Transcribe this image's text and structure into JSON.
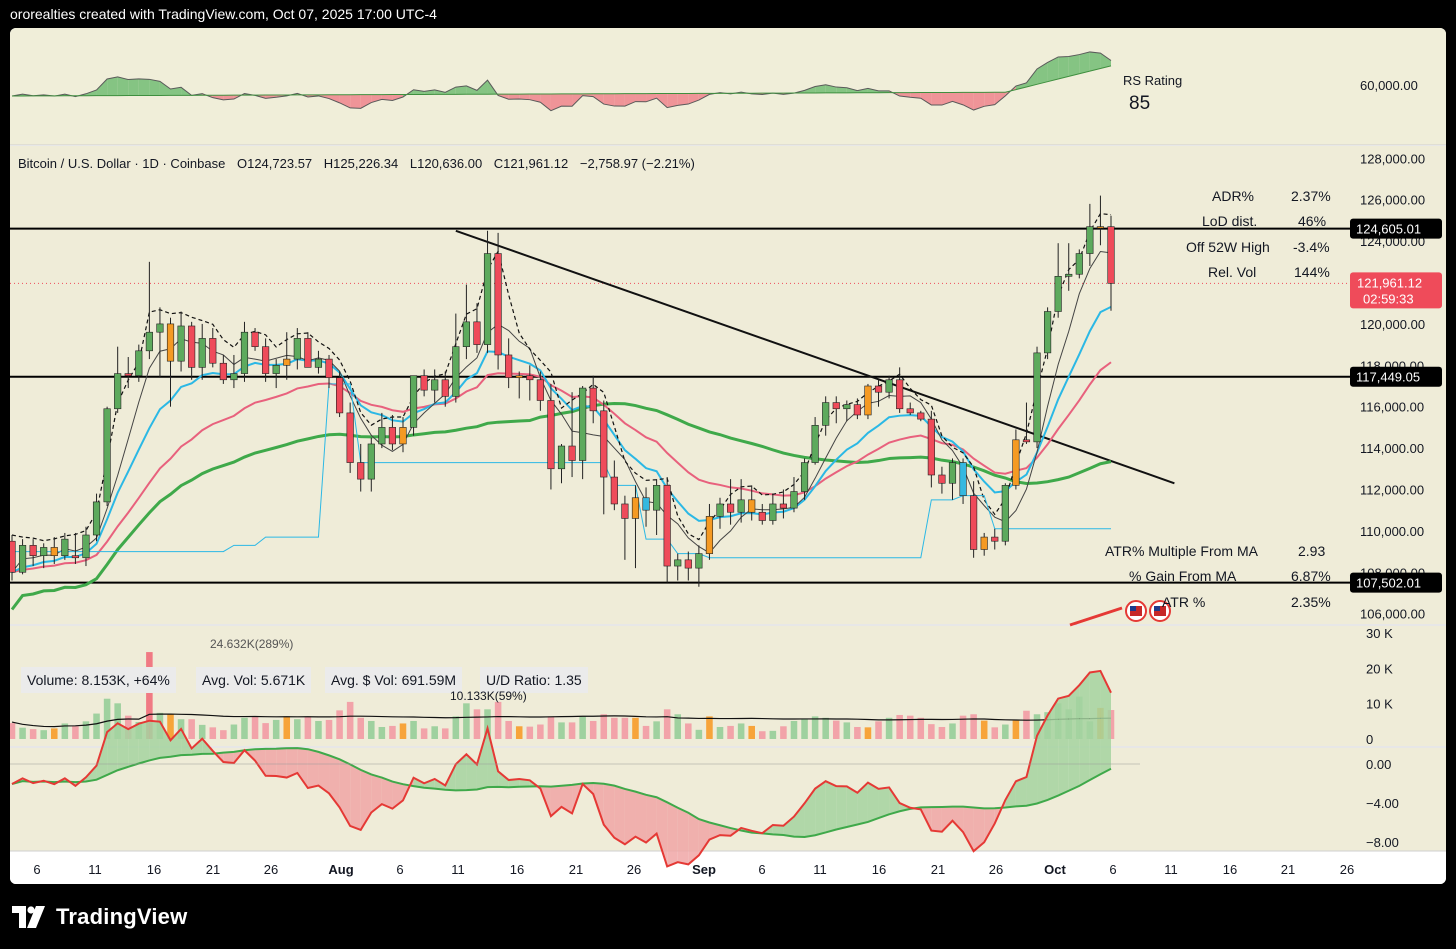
{
  "header": {
    "attribution": "ororealties created with TradingView.com, Oct 07, 2025 17:00 UTC-4"
  },
  "brand": {
    "name": "TradingView",
    "logo_icon": "tradingview-logo-icon"
  },
  "colors": {
    "bull": "#5daa5d",
    "bear": "#ef4b5a",
    "orange": "#f59a23",
    "cyan_candle": "#35b8e0",
    "ma_fast": "#2bb8e5",
    "ma_pink": "#e8617d",
    "ma_green": "#3fa94a",
    "pane_bg": "#f1eedc",
    "price_line": "#ef4b5a"
  },
  "rs_pane": {
    "label": "RS Rating",
    "value": "85",
    "axis_label": "60,000.00"
  },
  "main_pane": {
    "symbol_line": "Bitcoin / U.S. Dollar · 1D · Coinbase",
    "open": "O124,723.57",
    "high": "H125,226.34",
    "low": "L120,636.00",
    "close": "C121,961.12",
    "change": "−2,758.97 (−2.21%)",
    "stats_top": [
      {
        "label": "ADR%",
        "value": "2.37%"
      },
      {
        "label": "LoD dist.",
        "value": "46%"
      },
      {
        "label": "Off 52W High",
        "value": "-3.4%"
      },
      {
        "label": "Rel. Vol",
        "value": "144%"
      }
    ],
    "stats_bottom": [
      {
        "label": "ATR% Multiple From MA",
        "value": "2.93"
      },
      {
        "label": "% Gain From MA",
        "value": "6.87%"
      },
      {
        "label": "ATR %",
        "value": "2.35%"
      }
    ],
    "price_axis": [
      "128,000.00",
      "126,000.00",
      "124,000.00",
      "122,000.00",
      "120,000.00",
      "118,000.00",
      "116,000.00",
      "114,000.00",
      "112,000.00",
      "110,000.00",
      "108,000.00",
      "106,000.00"
    ],
    "level_labels": [
      "124,605.01",
      "117,449.05",
      "107,502.01"
    ],
    "last_price": "121,961.12",
    "countdown": "02:59:33",
    "event_icons": [
      "us-flag-icon",
      "us-flag-icon"
    ]
  },
  "volume_pane": {
    "volume": "Volume: 8.153K, +64%",
    "avg_vol": "Avg. Vol: 5.671K",
    "avg_dollar_vol": "Avg. $ Vol: 691.59M",
    "ud_ratio": "U/D Ratio: 1.35",
    "peak_label": "24.632K(289%)",
    "mid_label": "10.133K(59%)",
    "axis": [
      "30 K",
      "20 K",
      "10 K",
      "0"
    ]
  },
  "rs_line_pane": {
    "axis": [
      "0.00",
      "−4.00",
      "−8.00"
    ]
  },
  "x_axis": {
    "labels": [
      "6",
      "11",
      "16",
      "21",
      "26",
      "Aug",
      "6",
      "11",
      "16",
      "21",
      "26",
      "Sep",
      "6",
      "11",
      "16",
      "21",
      "26",
      "Oct",
      "6",
      "11",
      "16",
      "21",
      "26"
    ]
  },
  "chart_data": {
    "type": "candlestick",
    "title": "Bitcoin / U.S. Dollar · 1D · Coinbase",
    "x_start": "2025-07-02",
    "interval": "1D",
    "ohlc": [
      [
        109500,
        109800,
        107600,
        108000
      ],
      [
        108000,
        109600,
        107900,
        109300
      ],
      [
        109300,
        109600,
        108300,
        108800
      ],
      [
        108800,
        109400,
        108200,
        109200
      ],
      [
        109200,
        109700,
        108400,
        108800
      ],
      [
        108800,
        109900,
        108600,
        109600
      ],
      [
        108800,
        109900,
        108400,
        108700
      ],
      [
        108700,
        110200,
        108300,
        109800
      ],
      [
        109800,
        111800,
        109500,
        111400
      ],
      [
        111400,
        116000,
        111200,
        115900
      ],
      [
        115900,
        118900,
        115700,
        117600
      ],
      [
        117600,
        118400,
        116900,
        117500
      ],
      [
        117500,
        119000,
        117200,
        118700
      ],
      [
        118700,
        123000,
        118300,
        119600
      ],
      [
        119600,
        120800,
        117400,
        120000
      ],
      [
        120000,
        120300,
        116000,
        118200
      ],
      [
        118200,
        120600,
        117700,
        119900
      ],
      [
        119900,
        120100,
        117300,
        117900
      ],
      [
        117900,
        120000,
        117300,
        119300
      ],
      [
        119300,
        119800,
        117900,
        118100
      ],
      [
        118100,
        118500,
        117100,
        117300
      ],
      [
        117300,
        118500,
        116900,
        117600
      ],
      [
        117600,
        120100,
        117200,
        119600
      ],
      [
        119600,
        119800,
        118700,
        118900
      ],
      [
        118900,
        119300,
        117200,
        117600
      ],
      [
        117600,
        118300,
        116900,
        118000
      ],
      [
        118000,
        119600,
        117300,
        118300
      ],
      [
        118300,
        119800,
        117800,
        119300
      ],
      [
        119300,
        119600,
        117900,
        117900
      ],
      [
        117900,
        118700,
        117600,
        118300
      ],
      [
        118300,
        118500,
        116900,
        117400
      ],
      [
        117400,
        117700,
        115500,
        115700
      ],
      [
        115700,
        116200,
        112800,
        113300
      ],
      [
        113300,
        114200,
        111900,
        112500
      ],
      [
        112500,
        114500,
        111900,
        114200
      ],
      [
        114200,
        115700,
        114000,
        115000
      ],
      [
        115000,
        115600,
        113900,
        114200
      ],
      [
        114200,
        115500,
        113800,
        115000
      ],
      [
        115000,
        117500,
        114600,
        117500
      ],
      [
        117500,
        117800,
        116500,
        116800
      ],
      [
        116800,
        117800,
        116200,
        117300
      ],
      [
        117300,
        117700,
        116000,
        116500
      ],
      [
        116500,
        120500,
        116200,
        118900
      ],
      [
        118900,
        121900,
        118300,
        120100
      ],
      [
        120100,
        121000,
        118600,
        119000
      ],
      [
        119000,
        124500,
        118600,
        123400
      ],
      [
        123400,
        124400,
        117800,
        118500
      ],
      [
        118500,
        119300,
        116900,
        117400
      ],
      [
        117400,
        117700,
        116400,
        117500
      ],
      [
        117500,
        118000,
        116300,
        117300
      ],
      [
        117300,
        117700,
        115800,
        116300
      ],
      [
        116300,
        117100,
        112000,
        113000
      ],
      [
        113000,
        114200,
        112300,
        114100
      ],
      [
        114100,
        116700,
        112600,
        113400
      ],
      [
        113400,
        117000,
        112500,
        116900
      ],
      [
        116900,
        117500,
        115200,
        115800
      ],
      [
        115800,
        116300,
        110800,
        112600
      ],
      [
        112600,
        113400,
        111000,
        111300
      ],
      [
        111300,
        111700,
        108600,
        110600
      ],
      [
        110600,
        112200,
        108200,
        111600
      ],
      [
        111600,
        112100,
        110200,
        111000
      ],
      [
        111000,
        112500,
        109800,
        112200
      ],
      [
        112200,
        112600,
        107500,
        108300
      ],
      [
        108300,
        108900,
        107600,
        108600
      ],
      [
        108600,
        109000,
        107600,
        108200
      ],
      [
        108200,
        109300,
        107300,
        108900
      ],
      [
        108900,
        111300,
        108600,
        110700
      ],
      [
        110700,
        111600,
        110100,
        111300
      ],
      [
        111300,
        112500,
        110300,
        110900
      ],
      [
        110900,
        112500,
        110400,
        111500
      ],
      [
        111500,
        112200,
        110500,
        110900
      ],
      [
        110900,
        111300,
        110300,
        110500
      ],
      [
        110500,
        111800,
        110300,
        111300
      ],
      [
        111300,
        112000,
        110600,
        111100
      ],
      [
        111100,
        112600,
        110900,
        111900
      ],
      [
        111900,
        113500,
        111500,
        113300
      ],
      [
        113300,
        115500,
        113200,
        115100
      ],
      [
        115100,
        116500,
        114600,
        116200
      ],
      [
        116200,
        116500,
        115200,
        115900
      ],
      [
        115900,
        116300,
        115300,
        116100
      ],
      [
        116100,
        116400,
        115400,
        115600
      ],
      [
        115600,
        117100,
        115400,
        117000
      ],
      [
        117000,
        117300,
        116000,
        116700
      ],
      [
        116700,
        117500,
        116400,
        117300
      ],
      [
        117300,
        117900,
        115700,
        115900
      ],
      [
        115900,
        116200,
        115600,
        115700
      ],
      [
        115700,
        115800,
        115300,
        115400
      ],
      [
        115400,
        115800,
        112100,
        112700
      ],
      [
        112700,
        113100,
        111800,
        112300
      ],
      [
        112300,
        113500,
        111500,
        113300
      ],
      [
        113300,
        113500,
        111300,
        111700
      ],
      [
        111700,
        112400,
        108700,
        109100
      ],
      [
        109100,
        109900,
        108800,
        109700
      ],
      [
        109700,
        110100,
        109100,
        109500
      ],
      [
        109500,
        112300,
        109300,
        112200
      ],
      [
        112200,
        114900,
        112000,
        114400
      ],
      [
        114400,
        116200,
        114200,
        114300
      ],
      [
        114300,
        118900,
        114000,
        118600
      ],
      [
        118600,
        120800,
        118300,
        120600
      ],
      [
        120600,
        123900,
        120300,
        122300
      ],
      [
        122300,
        123900,
        121600,
        122400
      ],
      [
        122400,
        123600,
        122200,
        123400
      ],
      [
        123400,
        125800,
        122800,
        124700
      ],
      [
        124700,
        126200,
        123800,
        124700
      ],
      [
        124700,
        125226,
        120636,
        121961
      ]
    ],
    "volume": [
      4.5,
      3.2,
      2.8,
      2.5,
      3.0,
      4.4,
      3.6,
      5.0,
      7.2,
      11.4,
      10.1,
      6.6,
      4.8,
      24.6,
      7.4,
      7.0,
      5.6,
      5.6,
      4.0,
      3.3,
      2.5,
      4.1,
      6.0,
      6.5,
      4.5,
      5.4,
      6.4,
      5.6,
      6.4,
      5.1,
      5.4,
      8.1,
      10.5,
      6.0,
      5.1,
      3.4,
      3.7,
      4.4,
      5.1,
      3.0,
      3.6,
      3.0,
      6.4,
      10.1,
      8.4,
      8.4,
      10.5,
      5.1,
      3.6,
      3.5,
      4.1,
      6.4,
      4.7,
      4.7,
      6.4,
      5.1,
      7.0,
      6.0,
      6.0,
      6.0,
      3.7,
      5.0,
      8.4,
      7.0,
      4.4,
      2.6,
      6.4,
      3.4,
      3.7,
      4.4,
      3.7,
      2.2,
      2.3,
      3.6,
      5.1,
      5.8,
      6.4,
      6.0,
      5.2,
      4.7,
      3.4,
      3.3,
      5.0,
      6.0,
      6.8,
      6.6,
      6.0,
      4.2,
      3.4,
      4.4,
      6.6,
      7.0,
      5.2,
      3.3,
      4.1,
      5.2,
      8.0,
      7.0,
      7.6,
      10.1,
      8.4,
      12.0,
      5.0,
      8.8,
      8.2
    ],
    "levels": [
      124605.01,
      117449.05,
      107502.01
    ],
    "last_price": 121961.12,
    "trendline": [
      [
        "2025-08-13",
        124500
      ],
      [
        "2025-10-20",
        112300
      ]
    ],
    "ylim": [
      105500,
      128500
    ],
    "volume_ylim": [
      0,
      30
    ],
    "rs_rating": 85
  }
}
